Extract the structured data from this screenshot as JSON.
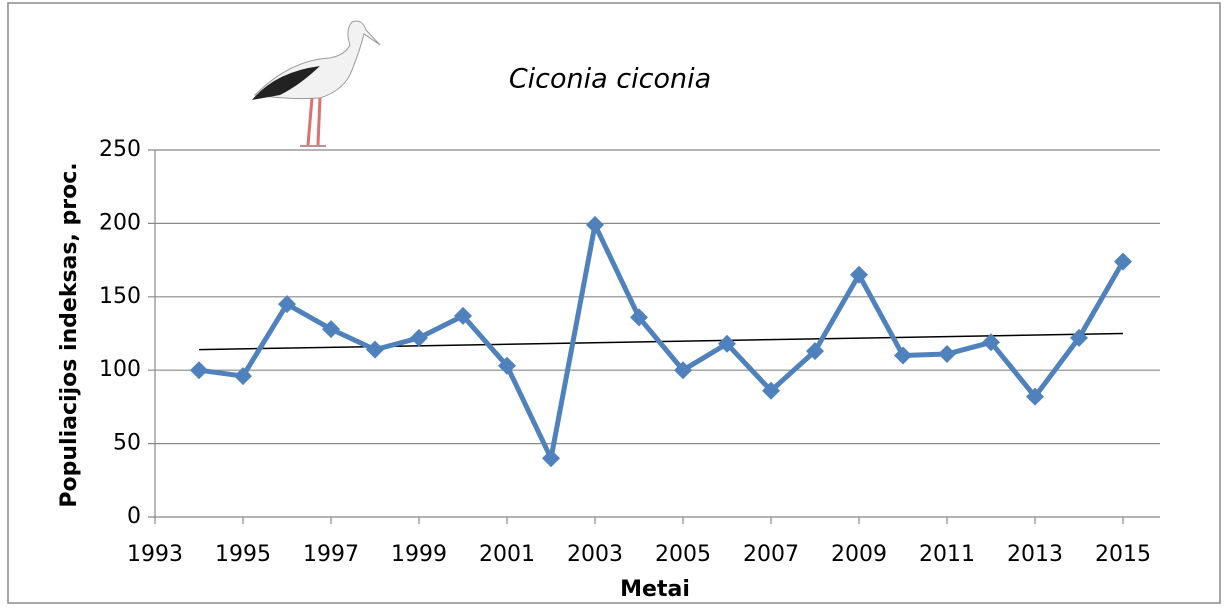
{
  "chart_data": {
    "type": "line",
    "title": "Ciconia ciconia",
    "x_label": "Metai",
    "y_label": "Populiacijos indeksas, proc.",
    "x": [
      1994,
      1995,
      1996,
      1997,
      1998,
      1999,
      2000,
      2001,
      2002,
      2003,
      2004,
      2005,
      2006,
      2007,
      2008,
      2009,
      2010,
      2011,
      2012,
      2013,
      2014,
      2015
    ],
    "series": [
      {
        "color": "#4f81bd",
        "values": [
          100,
          96,
          145,
          128,
          114,
          122,
          137,
          103,
          40,
          199,
          136,
          100,
          118,
          86,
          113,
          165,
          110,
          111,
          119,
          82,
          122,
          174
        ]
      }
    ],
    "trendline": {
      "x": [
        1994,
        2015
      ],
      "values": [
        114,
        125
      ],
      "color": "#000000"
    },
    "xlim": [
      1993,
      2016
    ],
    "xticks": [
      1993,
      1995,
      1997,
      1999,
      2001,
      2003,
      2005,
      2007,
      2009,
      2011,
      2013,
      2015
    ],
    "ylim": [
      0,
      250
    ],
    "yticks": [
      0,
      50,
      100,
      150,
      200,
      250
    ],
    "grid": true
  }
}
